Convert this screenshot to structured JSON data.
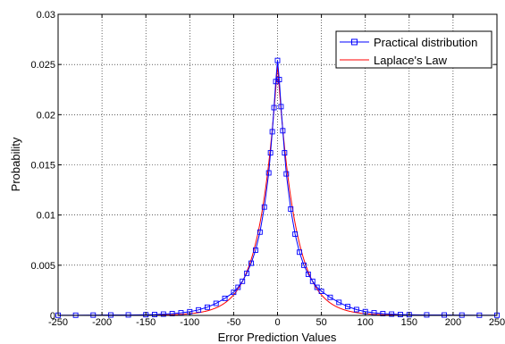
{
  "chart_data": {
    "type": "line",
    "xlabel": "Error Prediction Values",
    "ylabel": "Probability",
    "xlim": [
      -250,
      250
    ],
    "ylim": [
      0,
      0.03
    ],
    "x_ticks": [
      -250,
      -200,
      -150,
      -100,
      -50,
      0,
      50,
      100,
      150,
      200,
      250
    ],
    "y_ticks": [
      0,
      0.005,
      0.01,
      0.015,
      0.02,
      0.025,
      0.03
    ],
    "x_tick_labels": [
      "-250",
      "-200",
      "-150",
      "-100",
      "-50",
      "0",
      "50",
      "100",
      "150",
      "200",
      "250"
    ],
    "y_tick_labels": [
      "0",
      "0.005",
      "0.01",
      "0.015",
      "0.02",
      "0.025",
      "0.03"
    ],
    "grid": true,
    "legend_position": "top-right",
    "series": [
      {
        "name": "Practical distribution",
        "color": "#0000ff",
        "marker": "square",
        "points": [
          [
            -250,
            2e-05
          ],
          [
            -230,
            2e-05
          ],
          [
            -210,
            3e-05
          ],
          [
            -190,
            4e-05
          ],
          [
            -170,
            5e-05
          ],
          [
            -150,
            7e-05
          ],
          [
            -140,
            9e-05
          ],
          [
            -130,
            0.00013
          ],
          [
            -120,
            0.00018
          ],
          [
            -110,
            0.00026
          ],
          [
            -100,
            0.00037
          ],
          [
            -90,
            0.00055
          ],
          [
            -80,
            0.00082
          ],
          [
            -70,
            0.0012
          ],
          [
            -60,
            0.0017
          ],
          [
            -50,
            0.0023
          ],
          [
            -45,
            0.0028
          ],
          [
            -40,
            0.0034
          ],
          [
            -35,
            0.0042
          ],
          [
            -30,
            0.0052
          ],
          [
            -25,
            0.0065
          ],
          [
            -20,
            0.0083
          ],
          [
            -15,
            0.0108
          ],
          [
            -10,
            0.0142
          ],
          [
            -8,
            0.0162
          ],
          [
            -6,
            0.0183
          ],
          [
            -4,
            0.0207
          ],
          [
            -2,
            0.0233
          ],
          [
            0,
            0.0254
          ],
          [
            2,
            0.0235
          ],
          [
            4,
            0.0208
          ],
          [
            6,
            0.0184
          ],
          [
            8,
            0.0162
          ],
          [
            10,
            0.0141
          ],
          [
            15,
            0.0106
          ],
          [
            20,
            0.0081
          ],
          [
            25,
            0.0063
          ],
          [
            30,
            0.005
          ],
          [
            35,
            0.0041
          ],
          [
            40,
            0.0034
          ],
          [
            45,
            0.0028
          ],
          [
            50,
            0.0024
          ],
          [
            60,
            0.0018
          ],
          [
            70,
            0.0013
          ],
          [
            80,
            0.00088
          ],
          [
            90,
            0.00058
          ],
          [
            100,
            0.00038
          ],
          [
            110,
            0.00026
          ],
          [
            120,
            0.00018
          ],
          [
            130,
            0.00013
          ],
          [
            140,
            9e-05
          ],
          [
            150,
            7e-05
          ],
          [
            170,
            5e-05
          ],
          [
            190,
            4e-05
          ],
          [
            210,
            3e-05
          ],
          [
            230,
            2e-05
          ],
          [
            250,
            2e-05
          ]
        ]
      },
      {
        "name": "Laplace's Law",
        "color": "#ff0000",
        "marker": "none",
        "function": "laplace",
        "mu": 0,
        "b": 20,
        "peak": 0.025
      }
    ]
  }
}
